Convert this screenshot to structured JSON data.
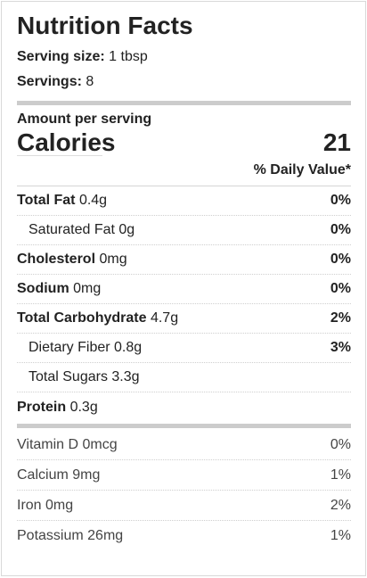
{
  "title": "Nutrition Facts",
  "serving": {
    "size_label": "Serving size:",
    "size_value": "1 tbsp",
    "servings_label": "Servings:",
    "servings_value": "8"
  },
  "amount_per_serving": "Amount per serving",
  "calories": {
    "label": "Calories",
    "value": "21"
  },
  "daily_value_header": "% Daily Value*",
  "nutrients": [
    {
      "name": "Total Fat",
      "amount": "0.4g",
      "dv": "0%",
      "bold": true,
      "sub": false
    },
    {
      "name": "Saturated Fat",
      "amount": "0g",
      "dv": "0%",
      "bold": false,
      "sub": true
    },
    {
      "name": "Cholesterol",
      "amount": "0mg",
      "dv": "0%",
      "bold": true,
      "sub": false
    },
    {
      "name": "Sodium",
      "amount": "0mg",
      "dv": "0%",
      "bold": true,
      "sub": false
    },
    {
      "name": "Total Carbohydrate",
      "amount": "4.7g",
      "dv": "2%",
      "bold": true,
      "sub": false
    },
    {
      "name": "Dietary Fiber",
      "amount": "0.8g",
      "dv": "3%",
      "bold": false,
      "sub": true
    },
    {
      "name": "Total Sugars",
      "amount": "3.3g",
      "dv": "",
      "bold": false,
      "sub": true
    },
    {
      "name": "Protein",
      "amount": "0.3g",
      "dv": "",
      "bold": true,
      "sub": false
    }
  ],
  "vitamins": [
    {
      "name": "Vitamin D",
      "amount": "0mcg",
      "dv": "0%"
    },
    {
      "name": "Calcium",
      "amount": "9mg",
      "dv": "1%"
    },
    {
      "name": "Iron",
      "amount": "0mg",
      "dv": "2%"
    },
    {
      "name": "Potassium",
      "amount": "26mg",
      "dv": "1%"
    }
  ]
}
